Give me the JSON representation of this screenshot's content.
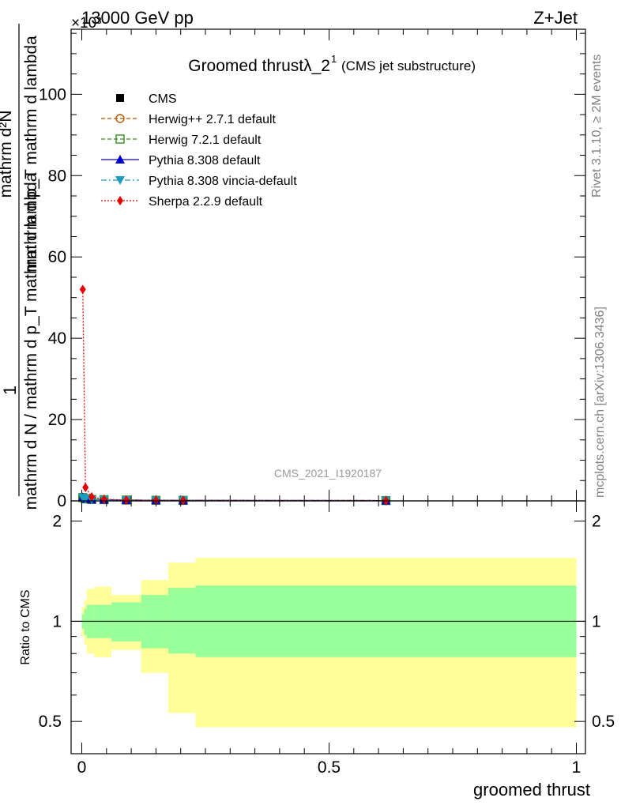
{
  "header": {
    "left_label": "13000 GeV pp",
    "exponent_label": "×10³",
    "right_label": "Z+Jet"
  },
  "side_labels": {
    "rivet": "Rivet 3.1.10, ≥ 2M events",
    "mcplots": "mcplots.cern.ch [arXiv:1306.3436]"
  },
  "chart_data": [
    {
      "type": "line",
      "title": "Groomed thrustλ_2",
      "title_superscript": "1",
      "title_note": "(CMS jet substructure)",
      "watermark": "CMS_2021_I1920187",
      "ylabel_numerator": "1",
      "ylabel_denominator": "mathrm d N / mathrm d p_T mathrm d lambda",
      "ylabel_upper": "mathrm d²N",
      "ylabel_upper2": "mathrm d p_T mathrm d lambda",
      "xlim": [
        -0.02,
        1.02
      ],
      "ylim": [
        0,
        120
      ],
      "y_scale_note": "×10³",
      "yticks": [
        0,
        20,
        40,
        60,
        80,
        100
      ],
      "legend_position": "top-left",
      "series": [
        {
          "name": "CMS",
          "color": "#000000",
          "marker": "square-filled",
          "style": "none",
          "x": [
            0.002,
            0.0075,
            0.02,
            0.045,
            0.09,
            0.15,
            0.205,
            0.615
          ],
          "y": [
            0.9,
            0.6,
            0.4,
            0.3,
            0.2,
            0.15,
            0.12,
            0.08
          ]
        },
        {
          "name": "Herwig++ 2.7.1 default",
          "color": "#b25900",
          "marker": "circle-open",
          "style": "dashed",
          "x": [
            0.002,
            0.0075,
            0.02,
            0.045,
            0.09,
            0.15,
            0.205,
            0.615
          ],
          "y": [
            0.8,
            0.5,
            0.35,
            0.3,
            0.2,
            0.15,
            0.12,
            0.08
          ]
        },
        {
          "name": "Herwig 7.2.1 default",
          "color": "#3a8a1f",
          "marker": "square-open",
          "style": "dashed",
          "x": [
            0.002,
            0.0075,
            0.02,
            0.045,
            0.09,
            0.15,
            0.205,
            0.615
          ],
          "y": [
            0.8,
            0.5,
            0.35,
            0.3,
            0.2,
            0.15,
            0.12,
            0.08
          ]
        },
        {
          "name": "Pythia 8.308 default",
          "color": "#0000cc",
          "marker": "triangle-up",
          "style": "solid",
          "x": [
            0.002,
            0.0075,
            0.02,
            0.045,
            0.09,
            0.15,
            0.205,
            0.615
          ],
          "y": [
            0.9,
            0.5,
            0.35,
            0.3,
            0.2,
            0.15,
            0.12,
            0.08
          ]
        },
        {
          "name": "Pythia 8.308 vincia-default",
          "color": "#1a9bbf",
          "marker": "triangle-down",
          "style": "dashdot",
          "x": [
            0.002,
            0.0075,
            0.02,
            0.045,
            0.09,
            0.15,
            0.205,
            0.615
          ],
          "y": [
            0.8,
            0.5,
            0.35,
            0.3,
            0.2,
            0.15,
            0.12,
            0.08
          ]
        },
        {
          "name": "Sherpa 2.2.9 default",
          "color": "#e80000",
          "marker": "diamond",
          "style": "dotted",
          "x": [
            0.002,
            0.0075,
            0.02,
            0.045,
            0.09,
            0.15,
            0.205,
            0.615
          ],
          "y": [
            52,
            3.3,
            1.0,
            0.4,
            0.2,
            0.15,
            0.12,
            0.08
          ]
        }
      ]
    },
    {
      "type": "area",
      "ylabel": "Ratio to CMS",
      "xlabel": "groomed thrust",
      "xlim": [
        -0.02,
        1.02
      ],
      "ylim": [
        0.4,
        2.3
      ],
      "yticks": [
        0.5,
        1,
        2
      ],
      "xticks": [
        0,
        0.5,
        1
      ],
      "reference_line": 1,
      "bin_edges": [
        0,
        0.005,
        0.01,
        0.025,
        0.06,
        0.12,
        0.175,
        0.23,
        1.0
      ],
      "bands": [
        {
          "name": "stat",
          "color": "#99ff99",
          "low": [
            0.95,
            0.91,
            0.89,
            0.89,
            0.87,
            0.83,
            0.8,
            0.78
          ],
          "high": [
            1.05,
            1.09,
            1.12,
            1.12,
            1.14,
            1.2,
            1.26,
            1.28
          ]
        },
        {
          "name": "total",
          "color": "#ffff99",
          "low": [
            0.9,
            0.85,
            0.8,
            0.78,
            0.82,
            0.7,
            0.53,
            0.48
          ],
          "high": [
            1.1,
            1.16,
            1.25,
            1.27,
            1.2,
            1.33,
            1.5,
            1.55
          ]
        }
      ]
    }
  ]
}
